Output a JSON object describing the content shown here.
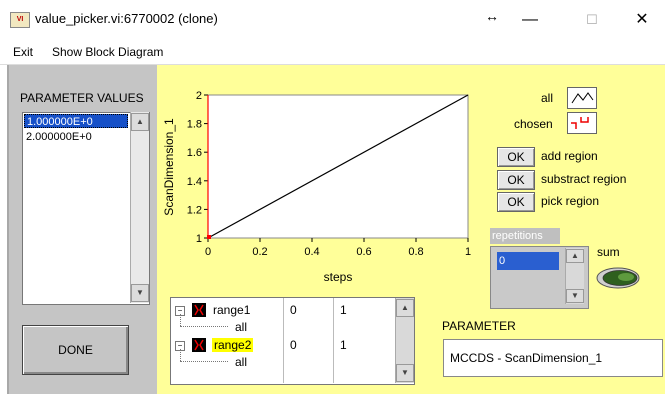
{
  "window": {
    "title": "value_picker.vi:6770002 (clone)",
    "resize_glyph": "↔",
    "min_glyph": "—",
    "max_glyph": "☐",
    "close_glyph": "✕"
  },
  "menu": {
    "items": [
      "Exit",
      "Show Block Diagram"
    ]
  },
  "parameter_values": {
    "label": "PARAMETER VALUES",
    "items": [
      "1.000000E+0",
      "2.000000E+0"
    ],
    "selected_index": 0
  },
  "done_label": "DONE",
  "chart_data": {
    "type": "line",
    "xlabel": "steps",
    "ylabel": "ScanDimension_1",
    "xlim": [
      0,
      1
    ],
    "ylim": [
      1,
      2
    ],
    "x_ticks": [
      "0",
      "0.2",
      "0.4",
      "0.6",
      "0.8",
      "1"
    ],
    "y_ticks": [
      "1",
      "1.2",
      "1.4",
      "1.6",
      "1.8",
      "2"
    ],
    "series": [
      {
        "x": [
          0,
          1
        ],
        "y": [
          1,
          2
        ],
        "color": "#000000"
      }
    ],
    "cursor_x": 0,
    "cursor_color": "#ff0000",
    "grid": false
  },
  "controls": {
    "all_label": "all",
    "chosen_label": "chosen",
    "ok_label": "OK",
    "add_region": "add region",
    "substract_region": "substract region",
    "pick_region": "pick region",
    "repetitions_label": "repetitions",
    "repetitions_value": "0",
    "sum_label": "sum",
    "parameter_label": "PARAMETER",
    "parameter_value": "MCCDS - ScanDimension_1"
  },
  "tree": {
    "rows": [
      {
        "name": "range1",
        "sub": "all",
        "start": "0",
        "end": "1",
        "highlight": false
      },
      {
        "name": "range2",
        "sub": "all",
        "start": "0",
        "end": "1",
        "highlight": true
      }
    ]
  },
  "colors": {
    "panel_yellow": "#ffff99",
    "panel_gray": "#c5c5c5",
    "selection_blue": "#1650c8"
  }
}
